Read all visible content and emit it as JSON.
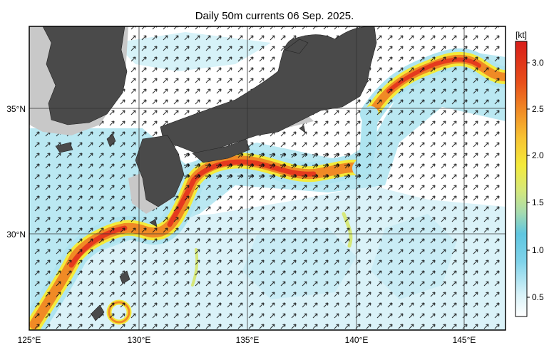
{
  "title": "Daily 50m currents 06 Sep. 2025.",
  "lon_labels": [
    "125°E",
    "130°E",
    "135°E",
    "140°E",
    "145°E"
  ],
  "lat_labels": [
    "35°N",
    "30°N"
  ],
  "colorbar": {
    "unit": "[kt]",
    "ticks": [
      "3.0",
      "2.5",
      "2.0",
      "1.5",
      "1.0",
      "0.5"
    ]
  },
  "colors": {
    "land": "#4a4a4a",
    "shelf": "#c8c8c8",
    "weak_current": "#aee4f0",
    "strong_current": "#e53a1e"
  }
}
